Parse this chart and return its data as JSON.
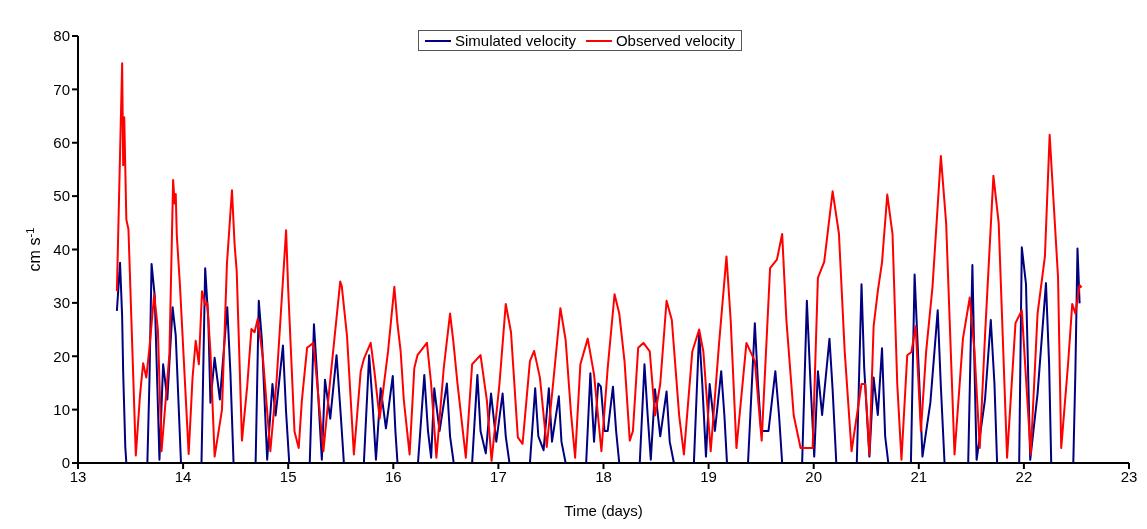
{
  "chart_data": {
    "type": "line",
    "xlabel": "Time (days)",
    "ylabel": "cm s$^{-1}$",
    "xlim": [
      13,
      23
    ],
    "xticks": [
      13,
      14,
      15,
      16,
      17,
      18,
      19,
      20,
      21,
      22,
      23
    ],
    "ylim": [
      0,
      80
    ],
    "yticks": [
      0,
      10,
      20,
      30,
      40,
      50,
      60,
      70,
      80
    ],
    "grid": false,
    "legend": "top",
    "marker": "none",
    "line_style": "solid",
    "series": [
      {
        "name": "Simulated velocity",
        "color": "#000080",
        "x": [
          13.37,
          13.4,
          13.42,
          13.43,
          13.45,
          13.46,
          13.66,
          13.68,
          13.7,
          13.73,
          13.775,
          13.81,
          13.85,
          13.9,
          13.93,
          13.98,
          14.175,
          14.21,
          14.24,
          14.26,
          14.3,
          14.35,
          14.42,
          14.45,
          14.48,
          14.69,
          14.72,
          14.75,
          14.8,
          14.85,
          14.88,
          14.95,
          14.98,
          15.01,
          15.205,
          15.245,
          15.27,
          15.32,
          15.35,
          15.4,
          15.46,
          15.5,
          15.53,
          15.72,
          15.77,
          15.8,
          15.835,
          15.88,
          15.93,
          15.995,
          16.02,
          16.04,
          16.235,
          16.295,
          16.33,
          16.36,
          16.39,
          16.44,
          16.51,
          16.54,
          16.575,
          16.75,
          16.8,
          16.83,
          16.88,
          16.93,
          16.98,
          17.04,
          17.07,
          17.105,
          17.3,
          17.35,
          17.38,
          17.43,
          17.48,
          17.51,
          17.575,
          17.6,
          17.64,
          17.835,
          17.875,
          17.91,
          17.95,
          17.975,
          18.01,
          18.04,
          18.09,
          18.12,
          18.15,
          18.345,
          18.39,
          18.42,
          18.45,
          18.49,
          18.54,
          18.6,
          18.63,
          18.67,
          18.86,
          18.91,
          18.94,
          18.975,
          19.01,
          19.06,
          19.12,
          19.15,
          19.175,
          19.375,
          19.44,
          19.47,
          19.5,
          19.57,
          19.635,
          19.67,
          19.7,
          19.89,
          19.935,
          19.97,
          20.005,
          20.04,
          20.08,
          20.15,
          20.18,
          20.215,
          20.41,
          20.455,
          20.48,
          20.53,
          20.57,
          20.61,
          20.65,
          20.68,
          20.71,
          20.73,
          20.925,
          20.96,
          21.0,
          21.035,
          21.11,
          21.18,
          21.21,
          21.245,
          21.47,
          21.51,
          21.53,
          21.55,
          21.63,
          21.685,
          21.72,
          21.745,
          21.955,
          21.98,
          22.02,
          22.06,
          22.13,
          22.21,
          22.24,
          22.26,
          22.47,
          22.49,
          22.51,
          22.53
        ],
        "values": [
          28.5,
          37.5,
          27.5,
          16.8,
          3,
          0,
          0,
          15.6,
          37.3,
          31.3,
          0.6,
          18.5,
          11.9,
          29.2,
          23.9,
          0,
          0,
          36.5,
          26.8,
          11.3,
          19.7,
          11.9,
          29.2,
          17,
          0,
          0,
          30.4,
          23,
          0.6,
          14.8,
          8.9,
          22,
          9.5,
          0,
          0,
          26,
          18,
          0.6,
          15.6,
          8.3,
          20.2,
          9,
          0,
          0,
          20.2,
          12,
          0.6,
          14,
          6.5,
          16.3,
          6,
          0,
          0,
          16.5,
          6,
          1,
          14,
          6,
          14.9,
          5,
          0,
          0,
          16.5,
          6,
          1.8,
          13,
          4,
          13,
          5,
          0,
          0,
          14,
          5,
          2.4,
          14,
          4,
          12.5,
          4,
          0,
          0,
          16.8,
          4,
          14.9,
          14.3,
          6,
          6,
          14.3,
          6,
          0,
          0,
          18.5,
          9,
          0.6,
          13.8,
          5,
          13.4,
          4,
          0,
          0,
          24.5,
          14.8,
          1.2,
          14.8,
          6,
          17.2,
          9,
          0,
          0,
          26.2,
          14.8,
          6,
          6,
          17.2,
          9,
          0,
          0,
          30.4,
          14.8,
          1.2,
          17.2,
          9,
          23.3,
          13.8,
          0,
          0,
          33.5,
          18,
          1.2,
          16,
          9,
          21.5,
          5,
          0,
          0,
          0,
          35.3,
          17.2,
          1.2,
          11.3,
          28.6,
          14.3,
          0,
          0,
          37.1,
          18,
          0.6,
          11.9,
          26.8,
          14.8,
          0,
          0,
          40.4,
          33.5,
          0.6,
          13,
          33.7,
          18.5,
          0,
          0,
          17.2,
          40.2,
          29.9
        ]
      },
      {
        "name": "Observed velocity",
        "color": "#ff0000",
        "x": [
          13.37,
          13.42,
          13.43,
          13.44,
          13.46,
          13.48,
          13.55,
          13.59,
          13.62,
          13.65,
          13.68,
          13.725,
          13.76,
          13.795,
          13.87,
          13.905,
          13.92,
          13.93,
          13.94,
          13.97,
          14.053,
          14.09,
          14.12,
          14.15,
          14.18,
          14.21,
          14.23,
          14.26,
          14.3,
          14.37,
          14.417,
          14.465,
          14.49,
          14.51,
          14.56,
          14.61,
          14.65,
          14.68,
          14.71,
          14.76,
          14.83,
          14.89,
          14.98,
          15.0,
          15.06,
          15.1,
          15.13,
          15.18,
          15.24,
          15.335,
          15.4,
          15.495,
          15.51,
          15.56,
          15.625,
          15.69,
          15.72,
          15.785,
          15.82,
          15.87,
          15.95,
          16.01,
          16.04,
          16.07,
          16.1,
          16.155,
          16.2,
          16.23,
          16.32,
          16.36,
          16.41,
          16.48,
          16.54,
          16.57,
          16.61,
          16.69,
          16.75,
          16.83,
          16.89,
          16.935,
          17.01,
          17.07,
          17.12,
          17.185,
          17.23,
          17.3,
          17.34,
          17.395,
          17.46,
          17.52,
          17.59,
          17.64,
          17.69,
          17.73,
          17.78,
          17.85,
          17.91,
          17.98,
          18.04,
          18.105,
          18.15,
          18.2,
          18.25,
          18.28,
          18.33,
          18.38,
          18.44,
          18.49,
          18.54,
          18.6,
          18.65,
          18.72,
          18.765,
          18.845,
          18.91,
          18.95,
          19.02,
          19.1,
          19.17,
          19.21,
          19.265,
          19.36,
          19.44,
          19.505,
          19.585,
          19.65,
          19.7,
          19.74,
          19.81,
          19.875,
          19.99,
          20.04,
          20.1,
          20.18,
          20.24,
          20.295,
          20.36,
          20.455,
          20.49,
          20.53,
          20.57,
          20.61,
          20.65,
          20.7,
          20.75,
          20.795,
          20.835,
          20.89,
          20.93,
          20.97,
          21.02,
          21.07,
          21.13,
          21.21,
          21.26,
          21.34,
          21.42,
          21.485,
          21.53,
          21.58,
          21.63,
          21.71,
          21.76,
          21.84,
          21.92,
          21.98,
          22.065,
          22.13,
          22.2,
          22.245,
          22.325,
          22.355,
          22.42,
          22.46,
          22.49,
          22.53,
          22.55
        ],
        "values": [
          32.2,
          74.9,
          55.8,
          64.8,
          45.6,
          43.8,
          1.4,
          12.7,
          18.7,
          16,
          21.6,
          31.6,
          25,
          2.2,
          20.5,
          53,
          48.6,
          50.4,
          42.7,
          33.3,
          1.7,
          16,
          22.9,
          18.5,
          32.2,
          29.6,
          30,
          20.9,
          1.2,
          10,
          37.3,
          51.1,
          40.9,
          36,
          4.2,
          14.4,
          25.1,
          24.5,
          27,
          19.6,
          2.2,
          15.6,
          43.6,
          32.5,
          5.9,
          2.8,
          11.7,
          21.6,
          22.5,
          2.2,
          15.6,
          34,
          33.1,
          23.7,
          1.6,
          17.2,
          19.5,
          22.5,
          17.2,
          8.3,
          20.9,
          33,
          26,
          20.9,
          11.8,
          1.6,
          17.8,
          20.2,
          22.5,
          14.8,
          1,
          17.8,
          28,
          23,
          15,
          1,
          18.5,
          20.2,
          11.8,
          0.4,
          14.8,
          29.8,
          24.5,
          4.8,
          3.6,
          19.1,
          21,
          16,
          3,
          14.8,
          29,
          23,
          9.5,
          1,
          18.5,
          23.3,
          16.6,
          2.2,
          17.8,
          31.6,
          28,
          19.1,
          4.2,
          6,
          21.6,
          22.5,
          20.9,
          8.9,
          14.8,
          30.4,
          26.8,
          8.9,
          1.6,
          20.9,
          25,
          20.9,
          2.2,
          22.5,
          38.7,
          26.8,
          2.8,
          22.5,
          19.1,
          4.2,
          36.5,
          38.1,
          42.9,
          26.8,
          8.9,
          2.8,
          2.8,
          34.7,
          37.7,
          50.9,
          43,
          20.9,
          2.2,
          14.8,
          14.8,
          1.6,
          25.6,
          32.2,
          37.6,
          50.3,
          42.9,
          14.8,
          0.6,
          20.2,
          20.8,
          25.6,
          6,
          20.9,
          32.9,
          57.5,
          45,
          1.6,
          23.3,
          31,
          20.9,
          2.8,
          23.9,
          53.8,
          45,
          1,
          26.2,
          28.6,
          1.6,
          28,
          38.7,
          61.5,
          34.7,
          2.8,
          18.5,
          29.8,
          28,
          33.3,
          32.9
        ]
      }
    ]
  }
}
